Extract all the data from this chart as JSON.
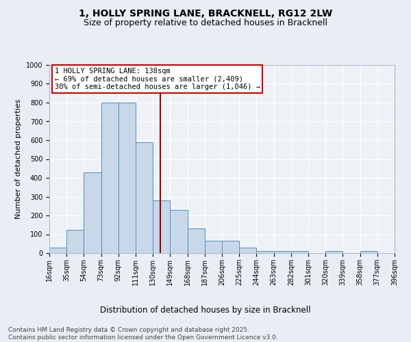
{
  "title1": "1, HOLLY SPRING LANE, BRACKNELL, RG12 2LW",
  "title2": "Size of property relative to detached houses in Bracknell",
  "xlabel": "Distribution of detached houses by size in Bracknell",
  "ylabel": "Number of detached properties",
  "bin_edges": [
    16,
    35,
    54,
    73,
    92,
    111,
    130,
    149,
    168,
    187,
    206,
    225,
    244,
    263,
    282,
    301,
    320,
    339,
    358,
    377,
    396
  ],
  "bar_heights": [
    30,
    125,
    430,
    800,
    800,
    590,
    280,
    230,
    130,
    65,
    65,
    30,
    10,
    10,
    10,
    0,
    10,
    0,
    10,
    0
  ],
  "bar_color": "#c8d8e8",
  "bar_edge_color": "#5090c0",
  "property_size": 138,
  "vline_color": "#990000",
  "annotation_text": "1 HOLLY SPRING LANE: 138sqm\n← 69% of detached houses are smaller (2,409)\n30% of semi-detached houses are larger (1,046) →",
  "annotation_box_color": "#ffffff",
  "annotation_box_edge": "#cc0000",
  "ylim": [
    0,
    1000
  ],
  "yticks": [
    0,
    100,
    200,
    300,
    400,
    500,
    600,
    700,
    800,
    900,
    1000
  ],
  "bg_color": "#e8eef4",
  "plot_bg_color": "#eef2f7",
  "footnote": "Contains HM Land Registry data © Crown copyright and database right 2025.\nContains public sector information licensed under the Open Government Licence v3.0.",
  "title1_fontsize": 10,
  "title2_fontsize": 9,
  "xlabel_fontsize": 8.5,
  "ylabel_fontsize": 8,
  "tick_fontsize": 7,
  "annotation_fontsize": 7.5,
  "footnote_fontsize": 6.5
}
